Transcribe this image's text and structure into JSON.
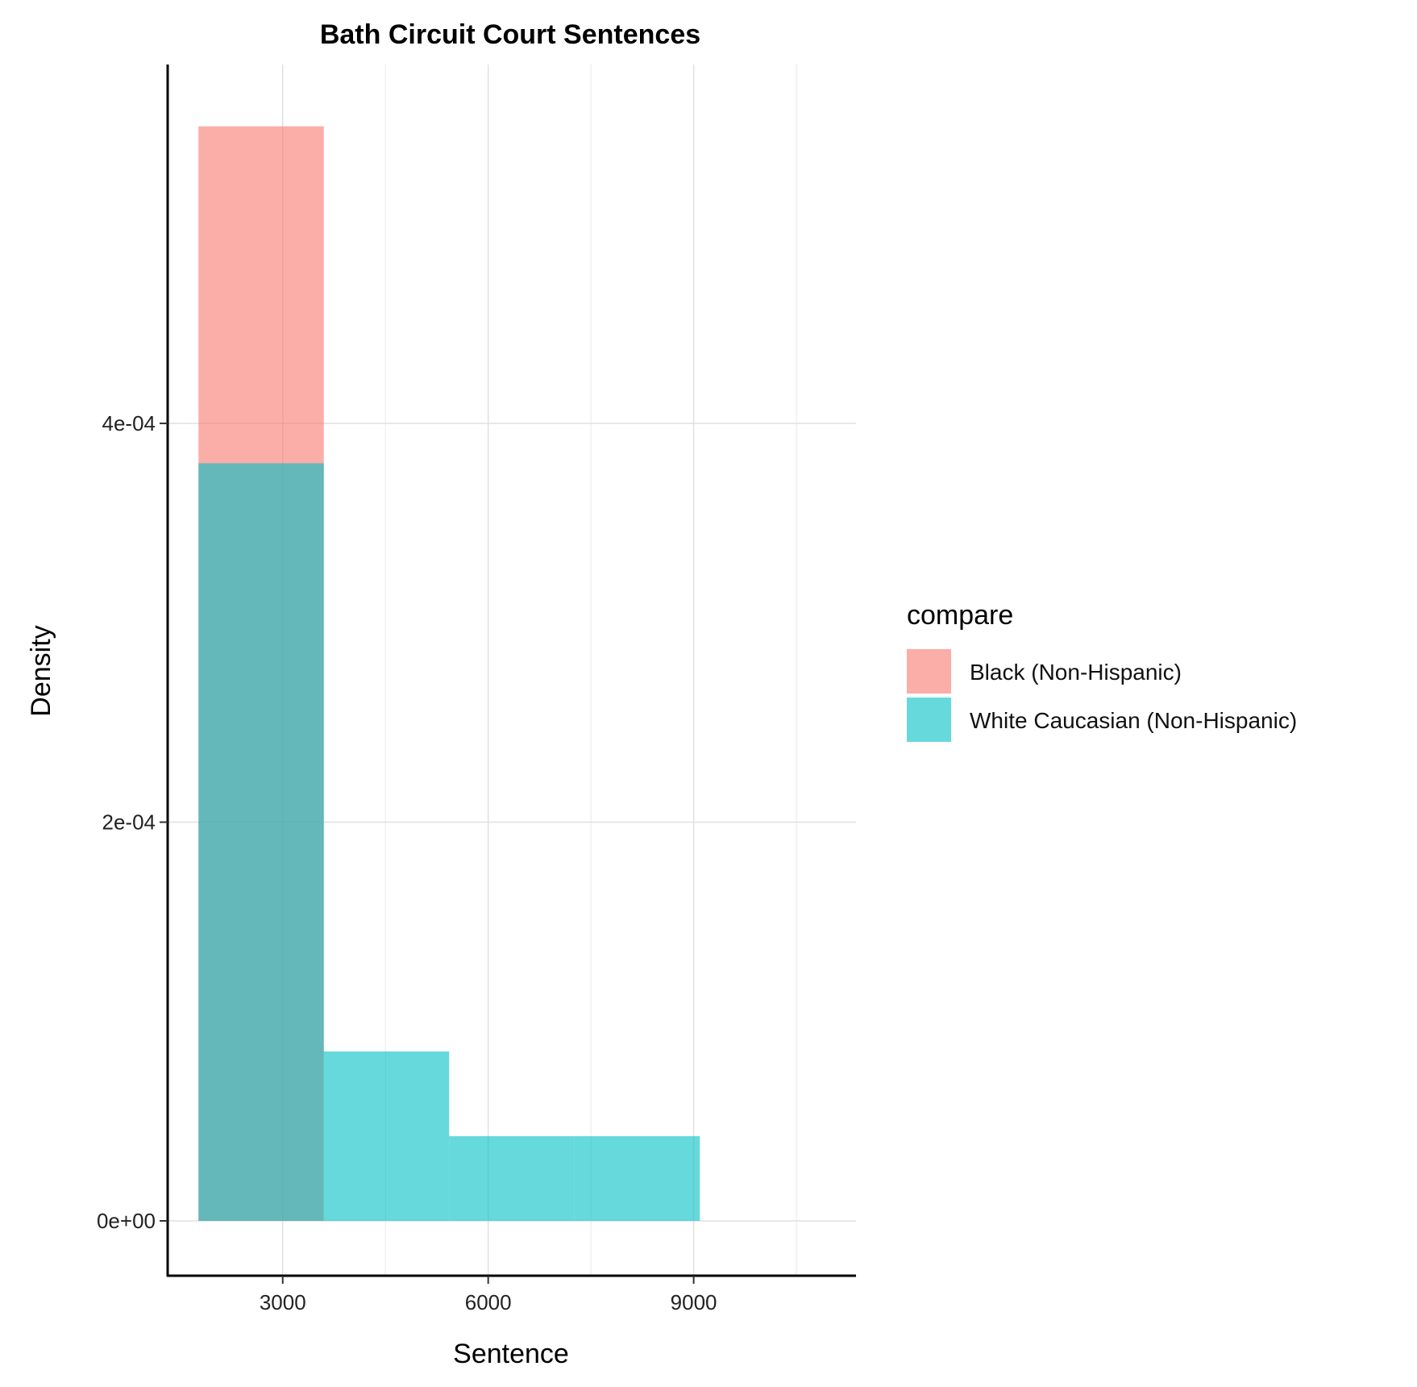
{
  "chart_data": {
    "type": "bar",
    "title": "Bath Circuit Court Sentences",
    "xlabel": "Sentence",
    "ylabel": "Density",
    "xlim": [
      1320,
      11370
    ],
    "ylim": [
      -2.75e-05,
      0.00058
    ],
    "x_ticks": [
      {
        "value": 3000,
        "label": "3000"
      },
      {
        "value": 6000,
        "label": "6000"
      },
      {
        "value": 9000,
        "label": "9000"
      }
    ],
    "x_minor_grid": [
      4500,
      7500,
      10500
    ],
    "y_ticks": [
      {
        "value": 0,
        "label": "0e+00"
      },
      {
        "value": 0.0002,
        "label": "2e-04"
      },
      {
        "value": 0.0004,
        "label": "4e-04"
      }
    ],
    "grid": true,
    "legend": {
      "title": "compare",
      "placement": "right",
      "entries": [
        {
          "label": "Black (Non-Hispanic)",
          "color": "#F8766D"
        },
        {
          "label": "White Caucasian (Non-Hispanic)",
          "color": "#00BFC4"
        }
      ]
    },
    "fill_opacity": 0.6,
    "series": [
      {
        "color": "#F8766D",
        "bins": [
          {
            "x0": 1770,
            "x1": 3600,
            "density": 0.000549
          }
        ]
      },
      {
        "color": "#00BFC4",
        "bins": [
          {
            "x0": 1770,
            "x1": 3600,
            "density": 0.00038
          },
          {
            "x0": 3600,
            "x1": 5430,
            "density": 8.5e-05
          },
          {
            "x0": 5430,
            "x1": 7260,
            "density": 4.25e-05
          },
          {
            "x0": 7260,
            "x1": 9090,
            "density": 4.25e-05
          }
        ]
      }
    ]
  }
}
